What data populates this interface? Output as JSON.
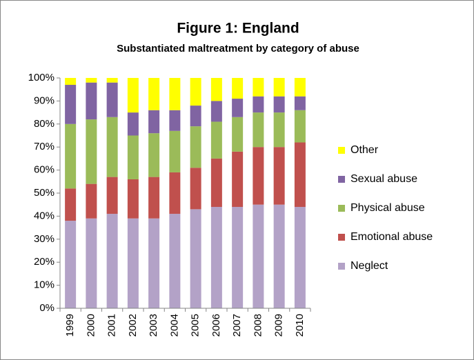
{
  "chart_data": {
    "type": "stacked_bar",
    "title": "Figure 1: England",
    "subtitle": "Substantiated maltreatment by category of abuse",
    "categories": [
      "1999",
      "2000",
      "2001",
      "2002",
      "2003",
      "2004",
      "2005",
      "2006",
      "2007",
      "2008",
      "2009",
      "2010"
    ],
    "series": [
      {
        "name": "Neglect",
        "color": "#b3a2c7",
        "values": [
          38,
          39,
          41,
          39,
          39,
          41,
          43,
          44,
          44,
          45,
          45,
          44
        ]
      },
      {
        "name": "Emotional abuse",
        "color": "#c0504d",
        "values": [
          14,
          15,
          16,
          17,
          18,
          18,
          18,
          21,
          24,
          25,
          25,
          28
        ]
      },
      {
        "name": "Physical abuse",
        "color": "#9bbb59",
        "values": [
          28,
          28,
          26,
          19,
          19,
          18,
          18,
          16,
          15,
          15,
          15,
          14
        ]
      },
      {
        "name": "Sexual abuse",
        "color": "#8064a2",
        "values": [
          17,
          16,
          15,
          10,
          10,
          9,
          9,
          9,
          8,
          7,
          7,
          6
        ]
      },
      {
        "name": "Other",
        "color": "#ffff00",
        "values": [
          3,
          2,
          2,
          15,
          14,
          14,
          12,
          10,
          9,
          8,
          8,
          8
        ]
      }
    ],
    "ylim": [
      0,
      100
    ],
    "yticks": [
      {
        "value": 0,
        "label": "0%"
      },
      {
        "value": 10,
        "label": "10%"
      },
      {
        "value": 20,
        "label": "20%"
      },
      {
        "value": 30,
        "label": "30%"
      },
      {
        "value": 40,
        "label": "40%"
      },
      {
        "value": 50,
        "label": "50%"
      },
      {
        "value": 60,
        "label": "60%"
      },
      {
        "value": 70,
        "label": "70%"
      },
      {
        "value": 80,
        "label": "80%"
      },
      {
        "value": 90,
        "label": "90%"
      },
      {
        "value": 100,
        "label": "100%"
      }
    ],
    "grid": false,
    "legend": "right"
  }
}
